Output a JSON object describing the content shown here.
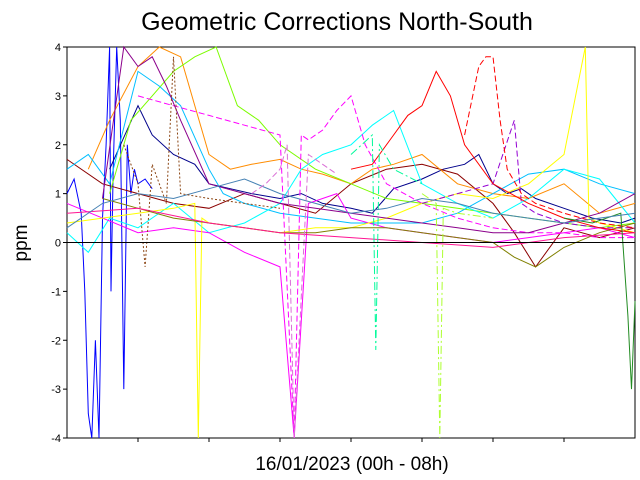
{
  "chart_data": {
    "type": "line",
    "title": "Geometric Corrections North-South",
    "xlabel": "16/01/2023 (00h - 08h)",
    "ylabel": "ppm",
    "ylim": [
      -4,
      4
    ],
    "yticks": [
      4,
      3,
      2,
      1,
      0,
      -1,
      -2,
      -3,
      -4
    ],
    "yticklabels": [
      "4",
      "3",
      "2",
      "1",
      "0",
      "-1",
      "-2",
      "-3",
      "-4"
    ],
    "xlim": [
      0,
      8
    ],
    "xticks": [
      1,
      2,
      3,
      4,
      5,
      6,
      7
    ],
    "grid": false,
    "legend": "none",
    "series": [
      {
        "color": "#0000ff",
        "style": "solid",
        "x": [
          0.0,
          0.1,
          0.2,
          0.25,
          0.3,
          0.35,
          0.4,
          0.45,
          0.5,
          0.55,
          0.6,
          0.62,
          0.65,
          0.7,
          0.75,
          0.8,
          0.85,
          0.9,
          0.95,
          1.0,
          1.1,
          1.2
        ],
        "y": [
          1.0,
          1.3,
          0.6,
          -1.0,
          -3.5,
          -4.0,
          -2.0,
          -4.0,
          0.5,
          2.0,
          4.0,
          -1.0,
          1.5,
          4.0,
          2.5,
          -3.0,
          2.0,
          1.0,
          1.5,
          1.2,
          1.3,
          1.1
        ]
      },
      {
        "color": "#00008b",
        "style": "solid",
        "x": [
          0.6,
          1.0,
          1.2,
          1.5,
          1.8,
          2.0,
          2.3,
          2.6,
          3.0,
          3.3,
          3.6,
          4.0,
          4.3,
          4.6,
          5.0,
          5.3,
          5.6,
          5.8,
          6.0,
          6.2,
          6.4,
          6.6,
          7.0,
          7.4,
          7.8,
          8.0
        ],
        "y": [
          1.5,
          2.8,
          2.2,
          1.8,
          1.6,
          1.2,
          1.1,
          1.0,
          0.9,
          1.0,
          0.8,
          0.7,
          0.6,
          1.1,
          1.3,
          1.5,
          1.6,
          1.8,
          1.2,
          1.0,
          1.1,
          0.9,
          0.7,
          0.5,
          0.4,
          0.5
        ]
      },
      {
        "color": "#8b0000",
        "style": "solid",
        "x": [
          0.0,
          0.5,
          1.0,
          1.5,
          2.0,
          2.5,
          3.0,
          3.5,
          4.0,
          4.5,
          5.0,
          5.5,
          6.0,
          6.3,
          6.6,
          7.0,
          7.5,
          8.0
        ],
        "y": [
          1.7,
          1.2,
          1.0,
          0.8,
          0.7,
          1.0,
          0.8,
          0.6,
          1.2,
          1.5,
          1.6,
          1.4,
          0.8,
          0.2,
          -0.5,
          0.3,
          0.1,
          0.3
        ]
      },
      {
        "color": "#ff8c00",
        "style": "solid",
        "x": [
          0.3,
          0.6,
          1.0,
          1.3,
          1.6,
          2.0,
          2.3,
          2.6,
          3.0,
          3.3,
          3.6,
          4.0,
          4.3,
          4.6,
          5.0,
          5.5,
          6.0,
          6.5,
          7.0,
          7.5,
          8.0
        ],
        "y": [
          1.5,
          2.5,
          3.6,
          4.0,
          3.8,
          1.8,
          1.5,
          1.6,
          1.7,
          1.5,
          1.4,
          1.2,
          1.5,
          1.6,
          1.8,
          1.2,
          1.0,
          0.9,
          1.2,
          0.6,
          0.8
        ]
      },
      {
        "color": "#7cfc00",
        "style": "solid",
        "x": [
          0.6,
          0.9,
          1.2,
          1.5,
          1.8,
          2.1,
          2.4,
          2.7,
          3.0,
          3.5,
          4.0,
          4.5,
          5.0,
          5.5,
          6.0,
          6.5,
          7.0,
          7.5,
          8.0
        ],
        "y": [
          1.0,
          2.5,
          3.0,
          3.5,
          3.8,
          4.0,
          2.8,
          2.5,
          2.0,
          1.5,
          1.2,
          0.9,
          0.8,
          0.7,
          0.6,
          0.5,
          0.4,
          0.3,
          0.4
        ]
      },
      {
        "color": "#00bfff",
        "style": "solid",
        "x": [
          0.0,
          0.3,
          0.6,
          1.0,
          1.3,
          1.6,
          2.0,
          2.2,
          2.5,
          3.0,
          3.5,
          4.0,
          4.5,
          5.0,
          5.5,
          6.0,
          6.5,
          7.0,
          7.5,
          8.0
        ],
        "y": [
          1.5,
          1.8,
          1.2,
          3.5,
          3.2,
          2.8,
          1.5,
          1.0,
          0.8,
          0.6,
          0.5,
          0.4,
          0.4,
          0.4,
          0.6,
          1.0,
          1.4,
          1.5,
          1.2,
          1.0
        ]
      },
      {
        "color": "#00ffff",
        "style": "solid",
        "x": [
          0.0,
          0.3,
          0.6,
          1.0,
          1.5,
          2.0,
          2.5,
          3.0,
          3.3,
          3.6,
          4.0,
          4.3,
          4.6,
          5.0,
          5.5,
          6.0,
          6.5,
          7.0,
          7.5,
          8.0
        ],
        "y": [
          0.2,
          -0.2,
          0.5,
          0.3,
          0.8,
          0.2,
          0.4,
          0.8,
          1.5,
          1.8,
          2.0,
          2.4,
          2.7,
          1.2,
          0.8,
          0.5,
          0.9,
          1.5,
          1.3,
          0.4
        ]
      },
      {
        "color": "#ff00ff",
        "style": "solid",
        "x": [
          0.0,
          0.5,
          1.0,
          1.5,
          2.0,
          2.5,
          3.0,
          3.2,
          3.4,
          3.6,
          3.8,
          4.0,
          4.5,
          5.0,
          5.5,
          6.0,
          6.5,
          7.0,
          7.5,
          8.0
        ],
        "y": [
          0.8,
          0.5,
          0.2,
          0.3,
          0.2,
          -0.2,
          -0.5,
          -4.0,
          0.8,
          0.9,
          1.0,
          0.5,
          0.3,
          0.2,
          0.1,
          0.0,
          0.1,
          0.2,
          0.3,
          0.1
        ]
      },
      {
        "color": "#ff00ff",
        "style": "dashed",
        "x": [
          1.0,
          1.5,
          2.0,
          2.5,
          3.0,
          3.2,
          3.3,
          3.4,
          3.6,
          3.8,
          4.0,
          4.2,
          4.5,
          5.0,
          5.5,
          6.0,
          6.5,
          7.0,
          7.5,
          8.0
        ],
        "y": [
          3.0,
          2.8,
          2.6,
          2.4,
          2.2,
          -4.0,
          2.2,
          2.1,
          2.3,
          2.7,
          3.0,
          2.0,
          1.2,
          0.8,
          0.5,
          0.3,
          0.2,
          0.2,
          0.1,
          0.1
        ]
      },
      {
        "color": "#ffff00",
        "style": "solid",
        "x": [
          0.0,
          0.5,
          1.0,
          1.5,
          1.8,
          1.85,
          1.9,
          2.0,
          2.5,
          3.0,
          3.5,
          4.0,
          4.5,
          5.0,
          5.5,
          6.0,
          6.5,
          7.0,
          7.3,
          7.35,
          7.5,
          8.0
        ],
        "y": [
          0.4,
          0.5,
          0.6,
          0.7,
          0.8,
          -4.0,
          0.5,
          0.4,
          0.3,
          0.2,
          0.3,
          0.3,
          0.5,
          0.8,
          1.0,
          0.9,
          1.2,
          1.8,
          4.0,
          0.5,
          0.4,
          0.2
        ]
      },
      {
        "color": "#808000",
        "style": "solid",
        "x": [
          0.5,
          1.0,
          1.5,
          2.0,
          2.5,
          3.0,
          3.5,
          4.0,
          4.5,
          5.0,
          5.5,
          6.0,
          6.3,
          6.6,
          7.0,
          7.5,
          8.0
        ],
        "y": [
          0.9,
          0.7,
          0.5,
          0.4,
          0.3,
          0.2,
          0.2,
          0.3,
          0.3,
          0.2,
          0.1,
          0.0,
          -0.3,
          -0.5,
          -0.1,
          0.2,
          0.4
        ]
      },
      {
        "color": "#8b008b",
        "style": "solid",
        "x": [
          0.5,
          0.8,
          1.0,
          1.2,
          1.4,
          1.6,
          2.0,
          2.5,
          3.0,
          3.5,
          4.0,
          4.5,
          5.0,
          5.5,
          6.0,
          6.5,
          7.0,
          7.5,
          8.0
        ],
        "y": [
          0.9,
          4.0,
          3.6,
          3.8,
          3.2,
          2.5,
          1.2,
          1.0,
          0.8,
          0.7,
          0.6,
          0.5,
          0.4,
          0.3,
          0.2,
          0.2,
          0.4,
          0.6,
          1.0
        ]
      },
      {
        "color": "#9400d3",
        "style": "dashed",
        "x": [
          5.0,
          5.5,
          6.0,
          6.3,
          6.4,
          6.6,
          7.0,
          7.5,
          8.0
        ],
        "y": [
          0.8,
          1.0,
          1.2,
          2.5,
          0.8,
          0.6,
          0.4,
          0.3,
          0.3
        ]
      },
      {
        "color": "#ff0000",
        "style": "solid",
        "x": [
          4.0,
          4.3,
          4.6,
          4.8,
          5.0,
          5.2,
          5.4,
          5.6,
          6.0,
          6.5,
          7.0,
          7.5,
          8.0
        ],
        "y": [
          1.5,
          1.6,
          2.2,
          2.6,
          2.8,
          3.5,
          3.0,
          2.0,
          1.2,
          0.8,
          0.5,
          0.3,
          0.2
        ]
      },
      {
        "color": "#ff0000",
        "style": "dashed",
        "x": [
          5.6,
          5.8,
          5.9,
          6.0,
          6.1,
          6.2,
          6.4,
          6.6,
          7.0,
          7.5,
          8.0
        ],
        "y": [
          2.2,
          3.6,
          3.8,
          3.8,
          2.5,
          1.5,
          1.0,
          0.8,
          0.6,
          0.4,
          0.3
        ]
      },
      {
        "color": "#ff1493",
        "style": "solid",
        "x": [
          0.0,
          1.0,
          2.0,
          3.0,
          4.0,
          5.0,
          6.0,
          7.0,
          8.0
        ],
        "y": [
          0.6,
          0.7,
          0.4,
          0.2,
          0.1,
          0.0,
          -0.1,
          0.1,
          0.2
        ]
      },
      {
        "color": "#00fa9a",
        "style": "dashdot",
        "x": [
          4.0,
          4.3,
          4.35,
          4.4,
          4.6,
          5.0
        ],
        "y": [
          1.8,
          2.2,
          -2.2,
          2.0,
          1.5,
          1.2
        ]
      },
      {
        "color": "#adff2f",
        "style": "dashdot",
        "x": [
          5.0,
          5.2,
          5.25,
          5.3,
          5.5,
          6.0
        ],
        "y": [
          1.0,
          0.8,
          -4.0,
          0.7,
          0.6,
          0.5
        ]
      },
      {
        "color": "#228b22",
        "style": "solid",
        "x": [
          7.0,
          7.4,
          7.8,
          7.9,
          7.95,
          8.0
        ],
        "y": [
          0.5,
          0.4,
          0.6,
          -1.5,
          -3.0,
          -1.2
        ]
      },
      {
        "color": "#4682b4",
        "style": "solid",
        "x": [
          0.0,
          0.5,
          1.0,
          1.5,
          2.0,
          2.5,
          3.0,
          3.5,
          4.0,
          4.5,
          5.0,
          5.5,
          6.0,
          6.5,
          7.0,
          7.5,
          8.0
        ],
        "y": [
          0.3,
          0.8,
          1.0,
          0.9,
          1.1,
          1.3,
          1.0,
          0.8,
          0.6,
          0.7,
          0.9,
          0.8,
          0.6,
          0.5,
          0.4,
          0.5,
          0.6
        ]
      },
      {
        "color": "#8b4513",
        "style": "dotted",
        "x": [
          0.8,
          1.0,
          1.1,
          1.2,
          1.4,
          1.5,
          1.6,
          2.0,
          2.5,
          3.0
        ],
        "y": [
          2.0,
          1.2,
          -0.5,
          1.6,
          0.8,
          3.8,
          1.0,
          0.9,
          0.8,
          0.7
        ]
      },
      {
        "color": "#da70d6",
        "style": "dashed",
        "x": [
          2.6,
          2.8,
          3.0,
          3.1,
          3.2,
          3.4,
          3.6,
          3.8
        ],
        "y": [
          1.0,
          1.2,
          1.5,
          2.0,
          -4.0,
          1.8,
          1.6,
          1.4
        ]
      }
    ]
  }
}
